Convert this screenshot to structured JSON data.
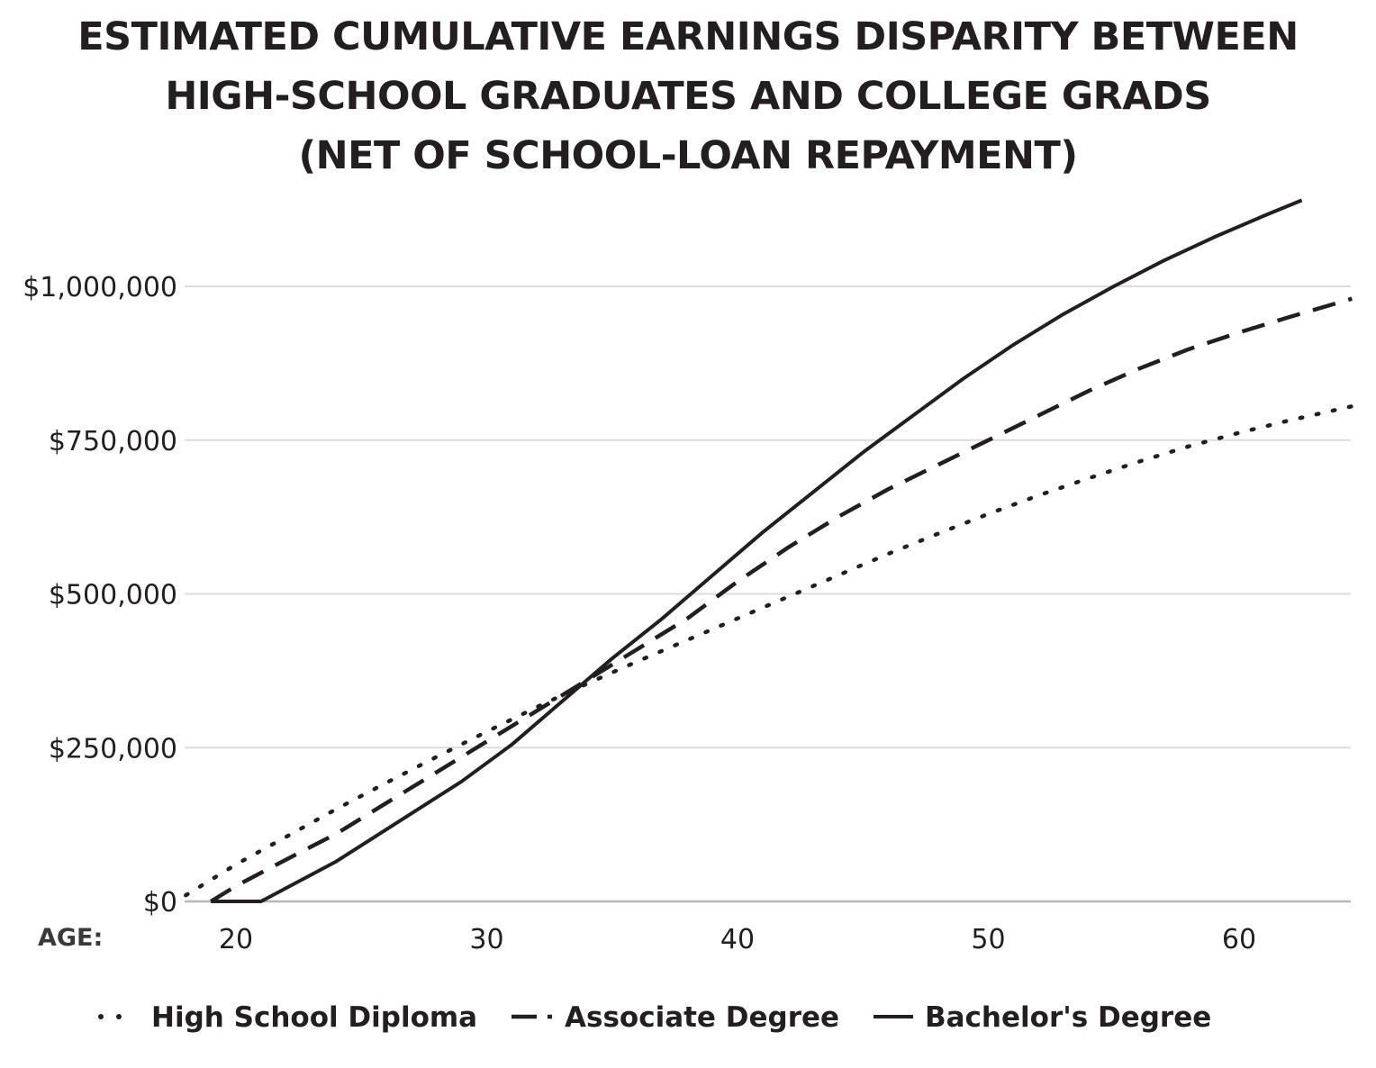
{
  "chart_data": {
    "type": "line",
    "title_lines": [
      "ESTIMATED CUMULATIVE EARNINGS DISPARITY BETWEEN",
      "HIGH-SCHOOL GRADUATES AND COLLEGE GRADS",
      "(NET OF SCHOOL-LOAN REPAYMENT)"
    ],
    "xlabel": "AGE:",
    "ylabel": "",
    "xlim": [
      18,
      64.5
    ],
    "ylim": [
      0,
      1150000
    ],
    "x_ticks": [
      20,
      30,
      40,
      50,
      60
    ],
    "x_tick_labels": [
      "20",
      "30",
      "40",
      "50",
      "60"
    ],
    "y_ticks": [
      0,
      250000,
      500000,
      750000,
      1000000
    ],
    "y_tick_labels": [
      "$0",
      "$250,000",
      "$500,000",
      "$750,000",
      "$1,000,000"
    ],
    "grid": "horizontal",
    "legend_position": "bottom",
    "series": [
      {
        "name": "High School Diploma",
        "style": "dotted",
        "color": "#231f20",
        "points": [
          [
            18,
            10000
          ],
          [
            20,
            60000
          ],
          [
            22,
            105000
          ],
          [
            24,
            150000
          ],
          [
            26,
            193000
          ],
          [
            28,
            235000
          ],
          [
            30,
            276000
          ],
          [
            32,
            316000
          ],
          [
            34,
            354000
          ],
          [
            36,
            390000
          ],
          [
            38,
            425000
          ],
          [
            40,
            460000
          ],
          [
            42,
            495000
          ],
          [
            44,
            530000
          ],
          [
            46,
            565000
          ],
          [
            48,
            598000
          ],
          [
            50,
            630000
          ],
          [
            52,
            660000
          ],
          [
            54,
            688000
          ],
          [
            56,
            715000
          ],
          [
            58,
            740000
          ],
          [
            60,
            762000
          ],
          [
            62,
            782000
          ],
          [
            64.5,
            805000
          ]
        ]
      },
      {
        "name": "Associate Degree",
        "style": "dashed",
        "color": "#231f20",
        "points": [
          [
            19,
            0
          ],
          [
            20,
            25000
          ],
          [
            22,
            68000
          ],
          [
            24,
            110000
          ],
          [
            26,
            160000
          ],
          [
            28,
            210000
          ],
          [
            30,
            260000
          ],
          [
            32,
            310000
          ],
          [
            34,
            360000
          ],
          [
            36,
            410000
          ],
          [
            38,
            460000
          ],
          [
            40,
            520000
          ],
          [
            42,
            575000
          ],
          [
            44,
            625000
          ],
          [
            46,
            670000
          ],
          [
            48,
            710000
          ],
          [
            50,
            750000
          ],
          [
            52,
            790000
          ],
          [
            54,
            830000
          ],
          [
            56,
            866000
          ],
          [
            58,
            898000
          ],
          [
            60,
            925000
          ],
          [
            62,
            950000
          ],
          [
            64.5,
            980000
          ]
        ]
      },
      {
        "name": "Bachelor's Degree",
        "style": "solid",
        "color": "#231f20",
        "points": [
          [
            19,
            0
          ],
          [
            21,
            0
          ],
          [
            24,
            65000
          ],
          [
            26.5,
            130000
          ],
          [
            29,
            195000
          ],
          [
            31,
            255000
          ],
          [
            33,
            325000
          ],
          [
            35,
            395000
          ],
          [
            37,
            460000
          ],
          [
            39,
            530000
          ],
          [
            41,
            600000
          ],
          [
            43,
            665000
          ],
          [
            45,
            730000
          ],
          [
            47,
            790000
          ],
          [
            49,
            850000
          ],
          [
            51,
            905000
          ],
          [
            53,
            955000
          ],
          [
            55,
            1000000
          ],
          [
            57,
            1042000
          ],
          [
            59,
            1080000
          ],
          [
            61,
            1115000
          ],
          [
            62.5,
            1140000
          ]
        ]
      }
    ]
  }
}
